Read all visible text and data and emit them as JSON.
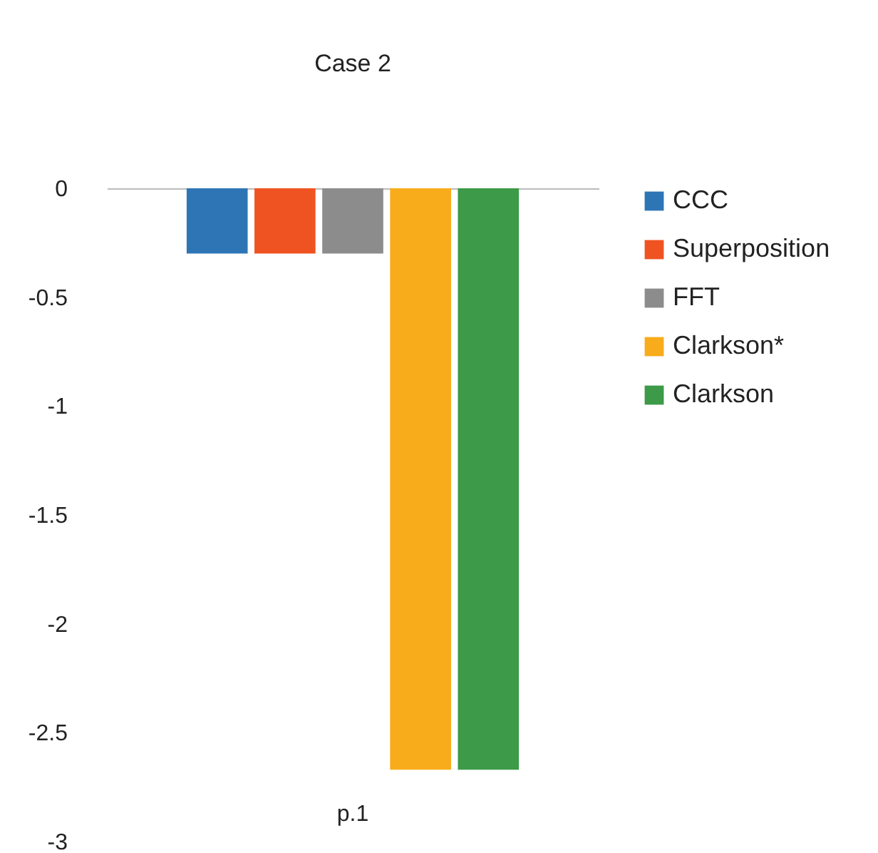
{
  "chart_data": {
    "type": "bar",
    "title": "Case 2",
    "categories": [
      "p.1"
    ],
    "series": [
      {
        "name": "CCC",
        "color": "#2e75b6",
        "values": [
          -0.3
        ]
      },
      {
        "name": "Superposition",
        "color": "#f05322",
        "values": [
          -0.3
        ]
      },
      {
        "name": "FFT",
        "color": "#8c8c8c",
        "values": [
          -0.3
        ]
      },
      {
        "name": "Clarkson*",
        "color": "#f8ac1c",
        "values": [
          -2.67
        ]
      },
      {
        "name": "Clarkson",
        "color": "#3c9a48",
        "values": [
          -2.67
        ]
      }
    ],
    "ylim": [
      -3,
      0
    ],
    "yticks": [
      0,
      -0.5,
      -1,
      -1.5,
      -2,
      -2.5,
      -3
    ],
    "legend": "right"
  }
}
